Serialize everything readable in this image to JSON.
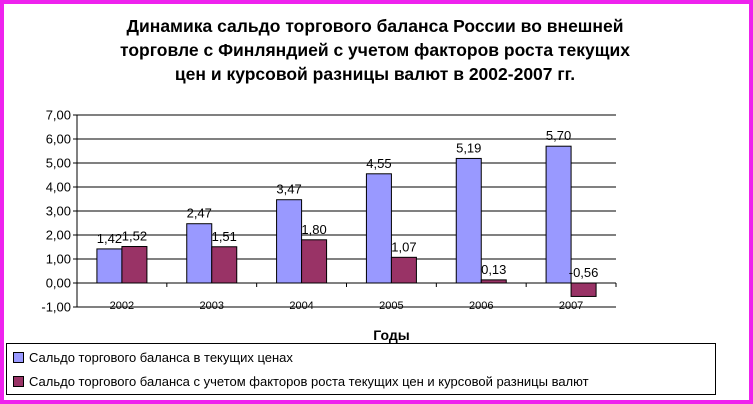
{
  "chart_data": {
    "type": "bar",
    "title_lines": [
      "Динамика сальдо торгового баланса России во внешней",
      "торговле с Финляндией с учетом факторов роста текущих",
      "цен и курсовой разницы валют в 2002-2007 гг."
    ],
    "xlabel": "Годы",
    "ylabel": "",
    "categories": [
      "2002",
      "2003",
      "2004",
      "2005",
      "2006",
      "2007"
    ],
    "ylim": [
      -1,
      7
    ],
    "yticks": [
      "7,00",
      "6,00",
      "5,00",
      "4,00",
      "3,00",
      "2,00",
      "1,00",
      "0,00",
      "-1,00"
    ],
    "grid": true,
    "legend_position": "bottom",
    "series": [
      {
        "name": "Сальдо торгового баланса в текущих ценах",
        "color": "#9999ff",
        "values": [
          1.42,
          2.47,
          3.47,
          4.55,
          5.19,
          5.7
        ],
        "labels": [
          "1,42",
          "2,47",
          "3,47",
          "4,55",
          "5,19",
          "5,70"
        ]
      },
      {
        "name": "Сальдо торгового баланса с учетом факторов роста текущих цен и курсовой разницы валют",
        "color": "#993366",
        "values": [
          1.52,
          1.51,
          1.8,
          1.07,
          0.13,
          -0.56
        ],
        "labels": [
          "1,52",
          "1,51",
          "1,80",
          "1,07",
          "0,13",
          "-0,56"
        ]
      }
    ]
  },
  "colors": {
    "frame": "#ee22ee",
    "grid": "#000000"
  }
}
